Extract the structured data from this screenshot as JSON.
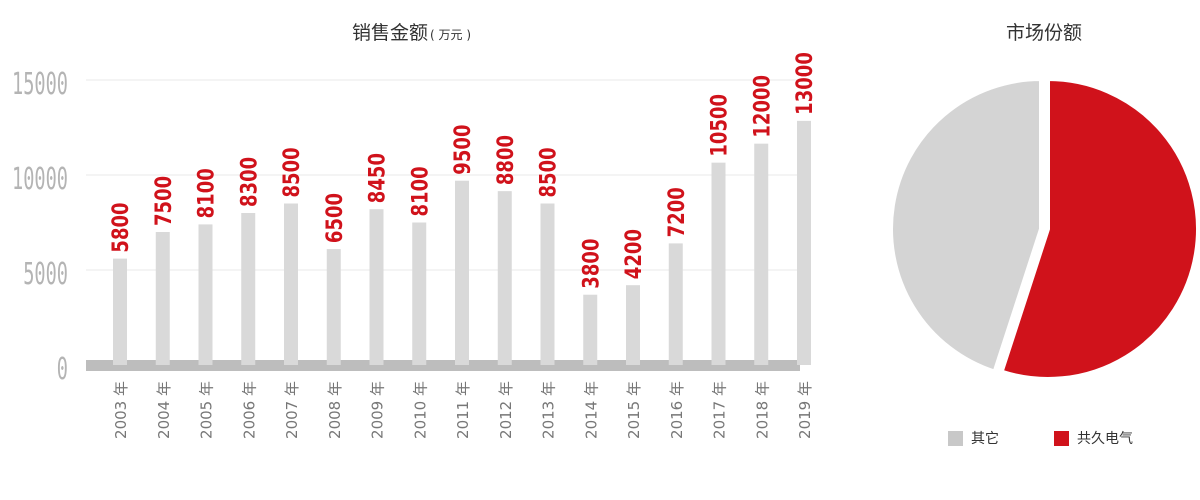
{
  "bar_title": "销售金额",
  "bar_title_unit": "( 万元 )",
  "pie_title": "市场份额",
  "colors": {
    "bar": "#d9d9d9",
    "label": "#d0121b",
    "axis": "#bdbdbd",
    "grid": "#e8e8e8",
    "pie_other": "#d4d4d4",
    "pie_main": "#d0121b"
  },
  "legend": [
    {
      "label": "其它",
      "color": "#c8c8c8"
    },
    {
      "label": "共久电气",
      "color": "#d0121b"
    }
  ],
  "chart_data": [
    {
      "type": "bar",
      "title": "销售金额 ( 万元 )",
      "categories": [
        "2003 年",
        "2004 年",
        "2005 年",
        "2006 年",
        "2007 年",
        "2008 年",
        "2009 年",
        "2010 年",
        "2011 年",
        "2012 年",
        "2013 年",
        "2014 年",
        "2015 年",
        "2016 年",
        "2017 年",
        "2018 年",
        "2019 年"
      ],
      "values": [
        5800,
        7500,
        8100,
        8300,
        8500,
        6500,
        8450,
        8100,
        9500,
        8800,
        8500,
        3800,
        4200,
        7200,
        10500,
        12000,
        13000
      ],
      "bar_heights_estimated": [
        5600,
        7000,
        7400,
        8000,
        8500,
        6100,
        8200,
        7500,
        9700,
        9150,
        8500,
        3700,
        4200,
        6400,
        10650,
        11650,
        12850
      ],
      "yticks": [
        0,
        5000,
        10000,
        15000
      ],
      "ylim": [
        0,
        15500
      ],
      "grid": true
    },
    {
      "type": "pie",
      "title": "市场份额",
      "labels": [
        "其它",
        "共久电气"
      ],
      "values": [
        45,
        55
      ]
    }
  ]
}
